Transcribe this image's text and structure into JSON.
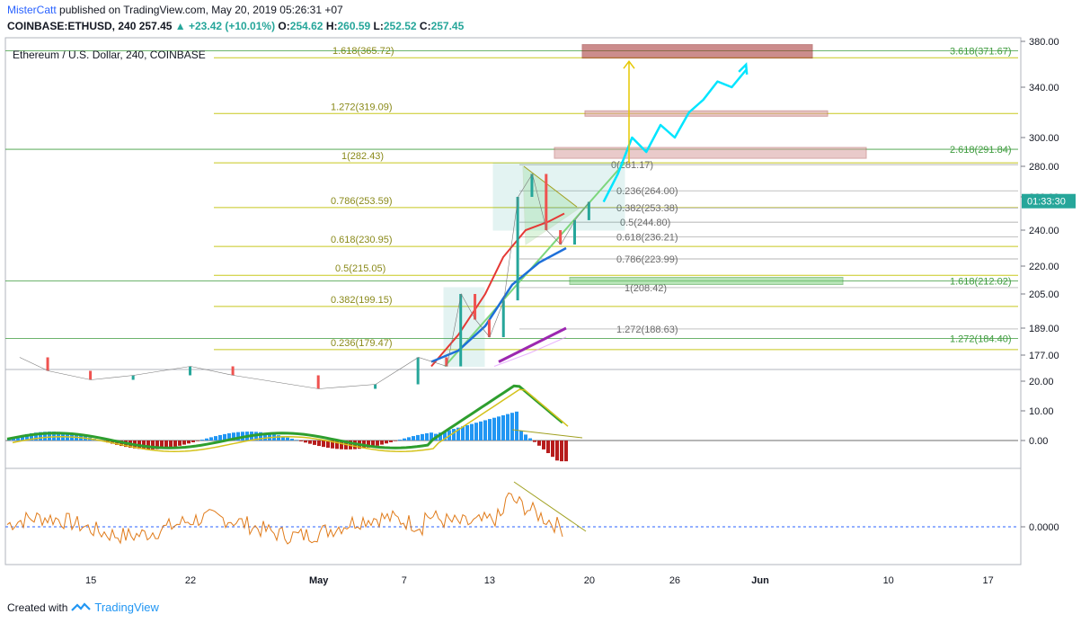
{
  "header": {
    "author": "MisterCatt",
    "published_text": "published on TradingView.com, May 20, 2019 05:26:31 +07",
    "symbol": "COINBASE:ETHUSD, 240",
    "last": "257.45",
    "change": "+23.42 (+10.01%)",
    "o_label": "O:",
    "o_val": "254.62",
    "h_label": "H:",
    "h_val": "260.59",
    "l_label": "L:",
    "l_val": "252.52",
    "c_label": "C:",
    "c_val": "257.45"
  },
  "pane_title": "Ethereum / U.S. Dollar, 240, COINBASE",
  "footer": {
    "created_with": "Created with",
    "brand": "TradingView"
  },
  "colors": {
    "up": "#26a69a",
    "down": "#ef5350",
    "fib_yellow": "#c8c81e",
    "fib_green": "#3d9b3d",
    "projection": "#00e5ff",
    "ma_red": "#e53935",
    "ma_blue": "#1e6fd9",
    "ma_purple": "#9c27b0",
    "osc_orange": "#e07b1a",
    "author": "#2962ff"
  },
  "chart_data": [
    {
      "type": "line",
      "title": "Ethereum / U.S. Dollar, 240, COINBASE",
      "y_axis_ticks": [
        "380.00",
        "340.00",
        "300.00",
        "280.00",
        "260.00",
        "240.00",
        "220.00",
        "205.00",
        "189.00",
        "177.00"
      ],
      "y_axis_values": [
        380,
        340,
        300,
        280,
        260,
        240,
        220,
        205,
        189,
        177
      ],
      "last_price_tag": "01:33:30",
      "x_axis_ticks": [
        "15",
        "22",
        "May",
        "7",
        "13",
        "20",
        "26",
        "Jun",
        "10",
        "17"
      ],
      "price_path": {
        "dates": [
          "Apr 10",
          "Apr 12",
          "Apr 15",
          "Apr 18",
          "Apr 22",
          "Apr 25",
          "May 1",
          "May 5",
          "May 8",
          "May 10",
          "May 11",
          "May 12",
          "May 13",
          "May 14",
          "May 15",
          "May 16",
          "May 17",
          "May 18",
          "May 19",
          "May 20"
        ],
        "close": [
          176,
          170,
          166,
          168,
          172,
          168,
          162,
          164,
          176,
          172,
          205,
          193,
          185,
          202,
          260,
          275,
          240,
          232,
          246,
          257
        ]
      },
      "projection_path": {
        "dates": [
          "May 21",
          "May 22",
          "May 23",
          "May 24",
          "May 25",
          "May 26",
          "May 27",
          "May 28",
          "May 29",
          "May 30",
          "May 31"
        ],
        "values": [
          257,
          275,
          300,
          290,
          310,
          300,
          320,
          330,
          345,
          340,
          355
        ]
      },
      "fib_left_labels": [
        "1.618(365.72)",
        "1.272(319.09)",
        "1(282.43)",
        "0.786(253.59)",
        "0.618(230.95)",
        "0.5(215.05)",
        "0.382(199.15)",
        "0.236(179.47)"
      ],
      "fib_left_values": [
        365.72,
        319.09,
        282.43,
        253.59,
        230.95,
        215.05,
        199.15,
        179.47
      ],
      "fib_mid_labels": [
        "0(281.17)",
        "0.236(264.00)",
        "0.382(253.38)",
        "0.5(244.80)",
        "0.618(236.21)",
        "0.786(223.99)",
        "1(208.42)",
        "1.272(188.63)"
      ],
      "fib_mid_values": [
        281.17,
        264.0,
        253.38,
        244.8,
        236.21,
        223.99,
        208.42,
        188.63
      ],
      "fib_right_labels": [
        "3.618(371.67)",
        "2.618(291.84)",
        "1.618(212.02)",
        "1.272(184.40)"
      ],
      "fib_right_values": [
        371.67,
        291.84,
        212.02,
        184.4
      ]
    },
    {
      "type": "line",
      "title": "",
      "y_axis_ticks": [
        "20.00",
        "10.00",
        "0.00"
      ],
      "y_axis_values": [
        20,
        10,
        0
      ]
    },
    {
      "type": "line",
      "title": "",
      "y_axis_ticks": [
        "0.0000"
      ],
      "y_axis_values": [
        0
      ]
    }
  ]
}
